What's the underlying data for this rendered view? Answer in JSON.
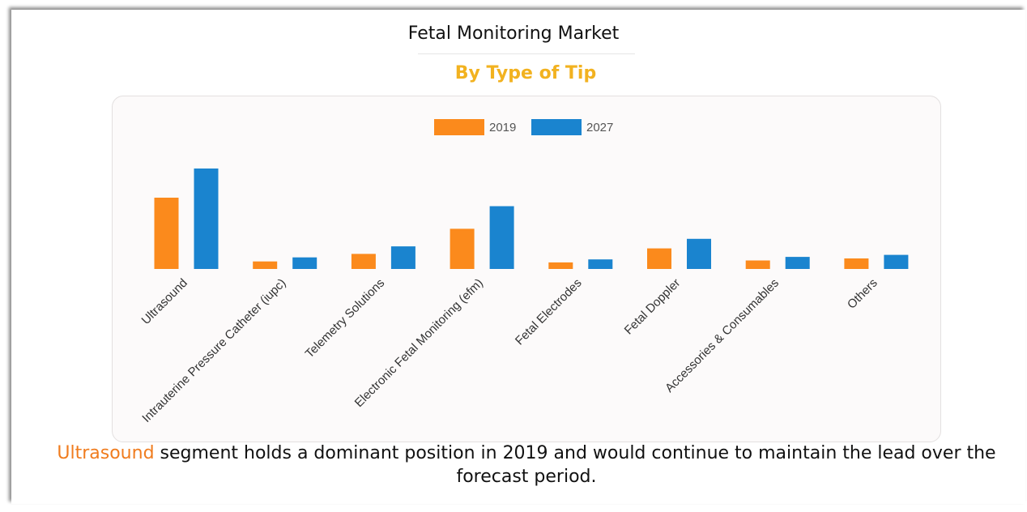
{
  "header": {
    "title": "Fetal Monitoring Market",
    "subtitle": "By Type of Tip"
  },
  "footer": {
    "highlight": "Ultrasound",
    "text": " segment holds a dominant position in 2019 and would continue to maintain the lead over the forecast period."
  },
  "colors": {
    "series_2019": "#fb8a1c",
    "series_2027": "#1a84cf",
    "subtitle": "#f2b220",
    "highlight": "#f07c1e"
  },
  "chart_data": {
    "type": "bar",
    "title": "",
    "xlabel": "",
    "ylabel": "",
    "ylim": [
      0,
      100
    ],
    "categories": [
      "Ultrasound",
      "Intrauterine Pressure Catheter (iupc)",
      "Telemetry Solutions",
      "Electronic Fetal Monitoring (efm)",
      "Fetal Electrodes",
      "Fetal Doppler",
      "Accessories & Consumables",
      "Others"
    ],
    "series": [
      {
        "name": "2019",
        "values": [
          71,
          7.5,
          15,
          40,
          6.5,
          20.5,
          8.5,
          10.5
        ]
      },
      {
        "name": "2027",
        "values": [
          100,
          11.5,
          22.5,
          62.5,
          9.5,
          30,
          12,
          14
        ]
      }
    ],
    "legend": "top-center",
    "grid": false
  }
}
